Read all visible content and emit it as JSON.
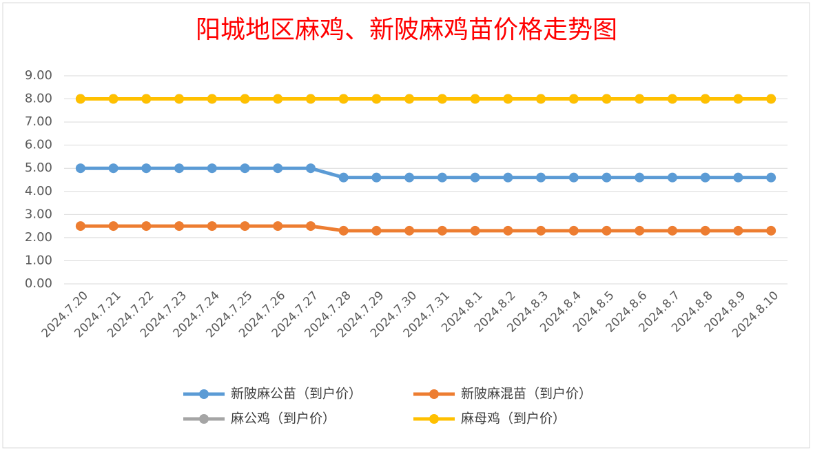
{
  "chart_data": {
    "type": "line",
    "title": "阳城地区麻鸡、新陂麻鸡苗价格走势图",
    "categories": [
      "2024.7.20",
      "2024.7.21",
      "2024.7.22",
      "2024.7.23",
      "2024.7.24",
      "2024.7.25",
      "2024.7.26",
      "2024.7.27",
      "2024.7.28",
      "2024.7.29",
      "2024.7.30",
      "2024.7.31",
      "2024.8.1",
      "2024.8.2",
      "2024.8.3",
      "2024.8.4",
      "2024.8.5",
      "2024.8.6",
      "2024.8.7",
      "2024.8.8",
      "2024.8.9",
      "2024.8.10"
    ],
    "series": [
      {
        "name": "新陂麻公苗（到户价）",
        "color": "#5b9bd5",
        "values": [
          5,
          5,
          5,
          5,
          5,
          5,
          5,
          5,
          4.6,
          4.6,
          4.6,
          4.6,
          4.6,
          4.6,
          4.6,
          4.6,
          4.6,
          4.6,
          4.6,
          4.6,
          4.6,
          4.6
        ]
      },
      {
        "name": "新陂麻混苗（到户价）",
        "color": "#ed7d31",
        "values": [
          2.5,
          2.5,
          2.5,
          2.5,
          2.5,
          2.5,
          2.5,
          2.5,
          2.3,
          2.3,
          2.3,
          2.3,
          2.3,
          2.3,
          2.3,
          2.3,
          2.3,
          2.3,
          2.3,
          2.3,
          2.3,
          2.3
        ]
      },
      {
        "name": "麻公鸡（到户价）",
        "color": "#a5a5a5",
        "values": [
          8,
          8,
          8,
          8,
          8,
          8,
          8,
          8,
          8,
          8,
          8,
          8,
          8,
          8,
          8,
          8,
          8,
          8,
          8,
          8,
          8,
          8
        ]
      },
      {
        "name": "麻母鸡（到户价）",
        "color": "#ffc000",
        "values": [
          8,
          8,
          8,
          8,
          8,
          8,
          8,
          8,
          8,
          8,
          8,
          8,
          8,
          8,
          8,
          8,
          8,
          8,
          8,
          8,
          8,
          8
        ]
      }
    ],
    "ylim": [
      0,
      9
    ],
    "yticks": [
      {
        "value": 0,
        "label": "0.00"
      },
      {
        "value": 1,
        "label": "1.00"
      },
      {
        "value": 2,
        "label": "2.00"
      },
      {
        "value": 3,
        "label": "3.00"
      },
      {
        "value": 4,
        "label": "4.00"
      },
      {
        "value": 5,
        "label": "5.00"
      },
      {
        "value": 6,
        "label": "6.00"
      },
      {
        "value": 7,
        "label": "7.00"
      },
      {
        "value": 8,
        "label": "8.00"
      },
      {
        "value": 9,
        "label": "9.00"
      }
    ],
    "grid": true,
    "legend": "bottom"
  }
}
